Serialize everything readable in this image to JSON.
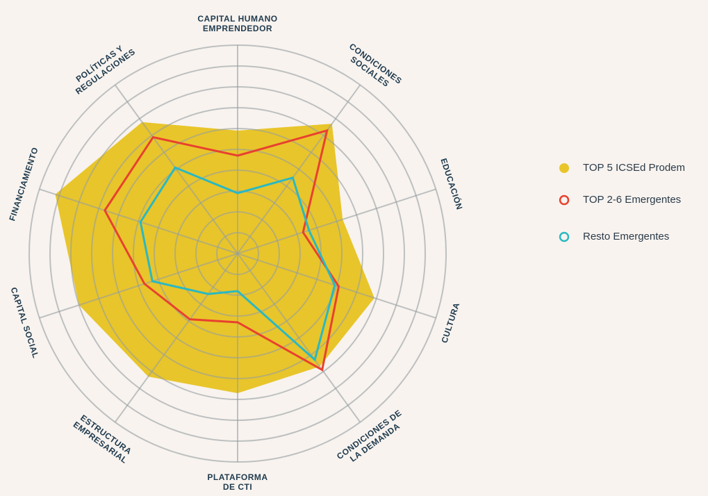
{
  "chart_data": {
    "type": "radar",
    "categories": [
      [
        "CAPITAL HUMANO",
        "EMPRENDEDOR"
      ],
      [
        "CONDICIONES",
        "SOCIALES"
      ],
      [
        "EDUCACIÓN"
      ],
      [
        "CULTURA"
      ],
      [
        "CONDICIONES DE",
        "LA DEMANDA"
      ],
      [
        "PLATAFORMA",
        "DE CTI"
      ],
      [
        "ESTRUCTURA",
        "EMPRESARIAL"
      ],
      [
        "CAPITAL SOCIAL"
      ],
      [
        "FINANCIAMIENTO"
      ],
      [
        "POLÍTICAS Y",
        "REGULACIONES"
      ]
    ],
    "series": [
      {
        "name": "TOP 5 ICSEd Prodem",
        "color": "#e8c52a",
        "fill": true,
        "values": [
          5.9,
          7.7,
          5.3,
          6.9,
          6.7,
          6.7,
          7.3,
          8.0,
          9.2,
          7.8
        ]
      },
      {
        "name": "TOP 2-6 Emergentes",
        "color": "#e8412f",
        "fill": false,
        "values": [
          4.7,
          7.3,
          3.3,
          5.1,
          6.9,
          3.3,
          3.9,
          4.7,
          6.7,
          6.9
        ]
      },
      {
        "name": "Resto Emergentes",
        "color": "#2bb8c2",
        "fill": false,
        "values": [
          2.9,
          4.5,
          3.6,
          4.9,
          6.3,
          1.8,
          2.4,
          4.3,
          4.9,
          5.1
        ]
      }
    ],
    "ylim": [
      0,
      10
    ],
    "yticks": [
      1,
      2,
      3,
      4,
      5,
      6,
      7,
      8,
      9,
      10
    ],
    "grid": true,
    "legend": "right"
  }
}
